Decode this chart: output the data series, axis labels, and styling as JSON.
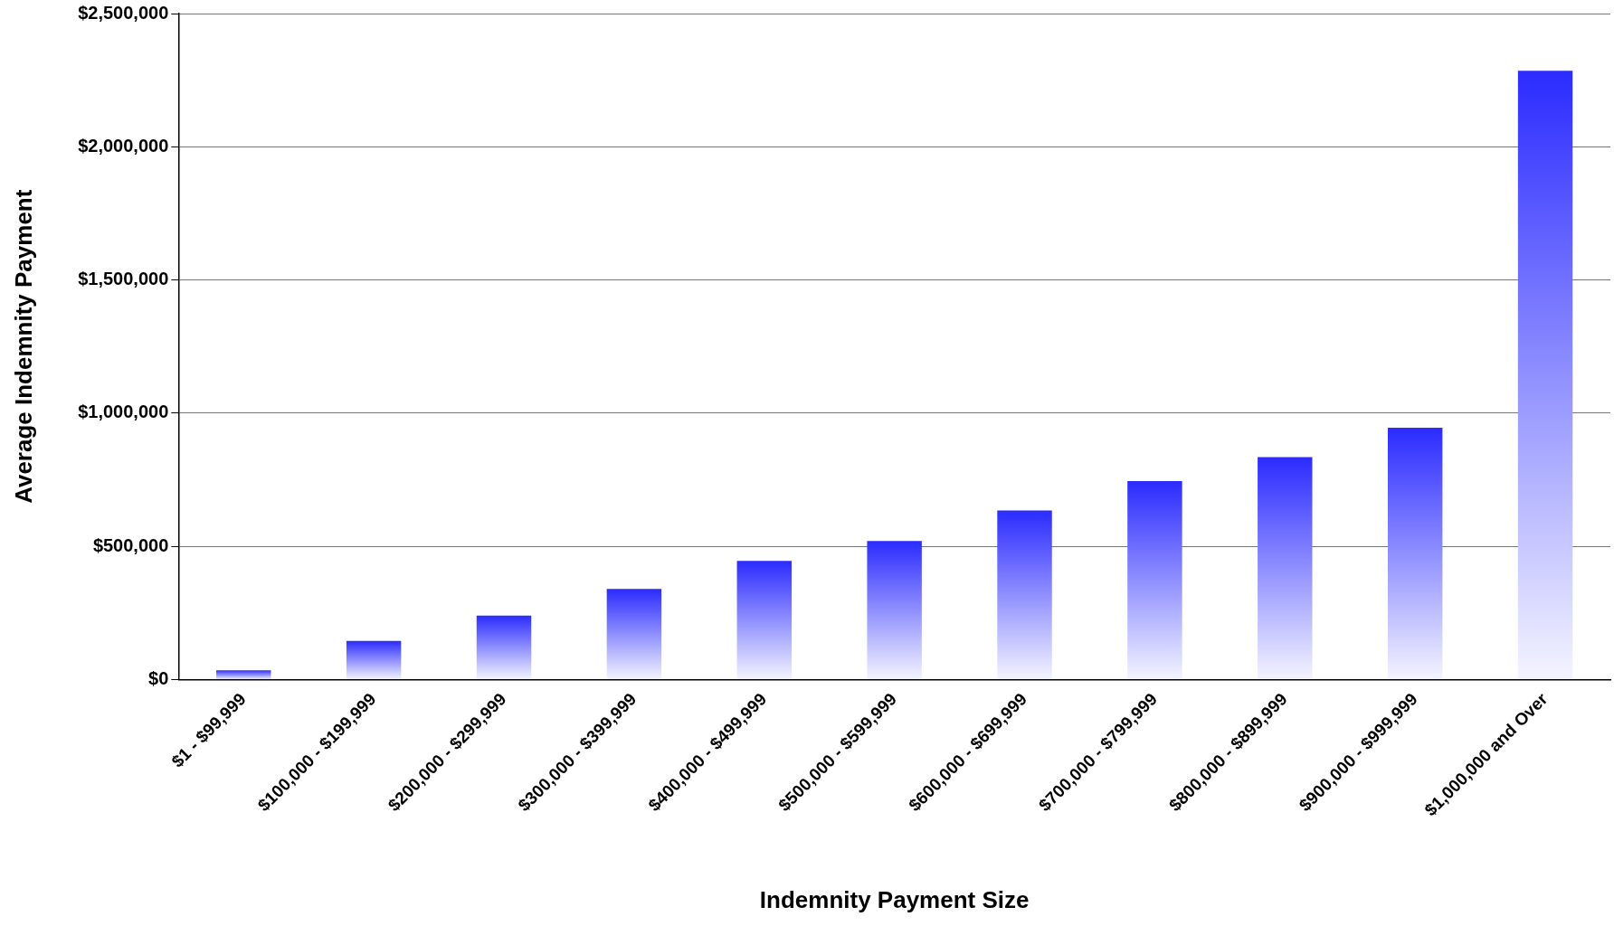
{
  "chart_data": {
    "type": "bar",
    "xlabel": "Indemnity Payment Size",
    "ylabel": "Average Indemnity Payment",
    "categories": [
      "$1 - $99,999",
      "$100,000 - $199,999",
      "$200,000 - $299,999",
      "$300,000 - $399,999",
      "$400,000 - $499,999",
      "$500,000 - $599,999",
      "$600,000 - $699,999",
      "$700,000 - $799,999",
      "$800,000 - $899,999",
      "$900,000 - $999,999",
      "$1,000,000 and Over"
    ],
    "values": [
      35000,
      145000,
      240000,
      340000,
      445000,
      520000,
      635000,
      745000,
      835000,
      945000,
      2285000
    ],
    "color": "#2b2bff",
    "ylim": [
      0,
      2500000
    ],
    "yticks": [
      {
        "value": 0,
        "label": "$0"
      },
      {
        "value": 500000,
        "label": "$500,000"
      },
      {
        "value": 1000000,
        "label": "$1,000,000"
      },
      {
        "value": 1500000,
        "label": "$1,500,000"
      },
      {
        "value": 2000000,
        "label": "$2,000,000"
      },
      {
        "value": 2500000,
        "label": "$2,500,000"
      }
    ],
    "grid": "y",
    "legend": false
  }
}
